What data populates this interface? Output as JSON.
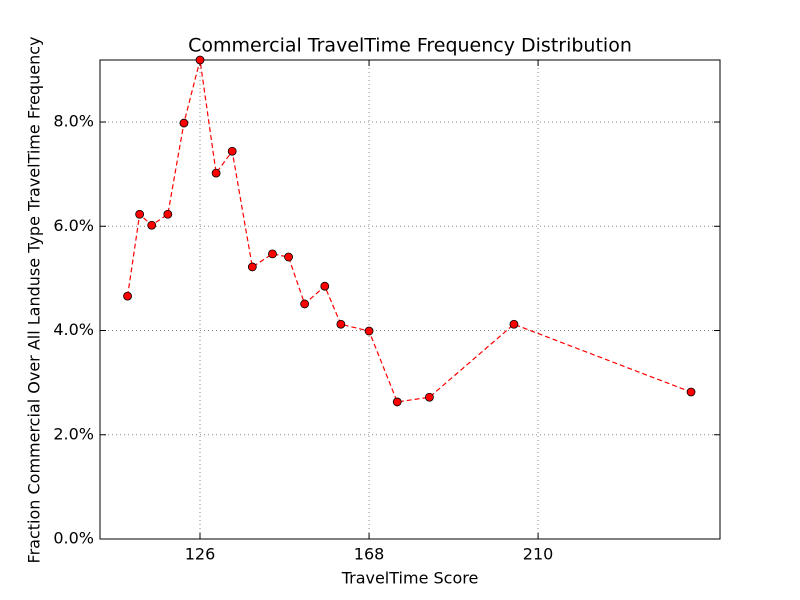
{
  "chart_data": {
    "type": "line",
    "title": "Commercial TravelTime Frequency Distribution",
    "x_label": "TravelTime Score",
    "y_label": "Fraction Commercial Over All Landuse Type TravelTime Frequency",
    "x": [
      108,
      111,
      114,
      118,
      122,
      126,
      130,
      134,
      139,
      144,
      148,
      152,
      157,
      161,
      168,
      175,
      183,
      204,
      248
    ],
    "series": [
      {
        "color": "#ff0000",
        "values": [
          4.66,
          6.23,
          6.02,
          6.23,
          7.98,
          9.19,
          7.02,
          7.44,
          5.22,
          5.47,
          5.41,
          4.51,
          4.85,
          4.12,
          3.99,
          2.63,
          2.72,
          4.12,
          2.82
        ]
      }
    ],
    "xlim": [
      101.15,
      255.2
    ],
    "xticks": [
      126,
      168,
      210
    ],
    "ylim": [
      0,
      9.19
    ],
    "yticks": [
      {
        "value": 0,
        "label": "0.0%"
      },
      {
        "value": 2,
        "label": "2.0%"
      },
      {
        "value": 4,
        "label": "4.0%"
      },
      {
        "value": 6,
        "label": "6.0%"
      },
      {
        "value": 8,
        "label": "8.0%"
      }
    ],
    "grid": true
  }
}
